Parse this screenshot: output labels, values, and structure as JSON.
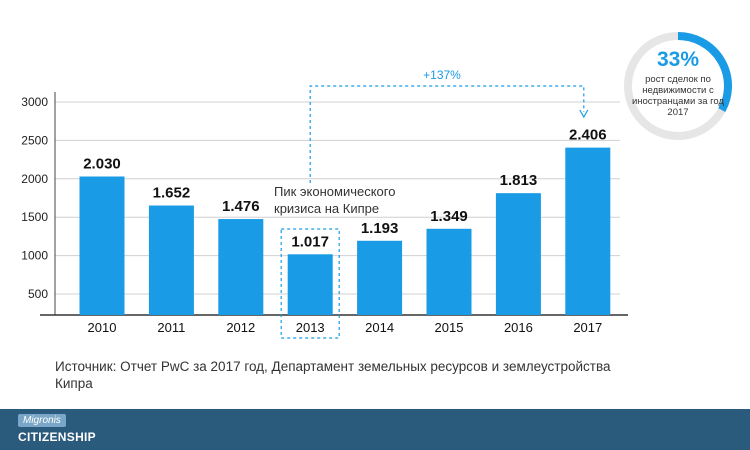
{
  "chart_data": {
    "type": "bar",
    "categories": [
      "2010",
      "2011",
      "2012",
      "2013",
      "2014",
      "2015",
      "2016",
      "2017"
    ],
    "values": [
      2030,
      1652,
      1476,
      1017,
      1193,
      1349,
      1813,
      2406
    ],
    "value_labels": [
      "2.030",
      "1.652",
      "1.476",
      "1.017",
      "1.193",
      "1.349",
      "1.813",
      "2.406"
    ],
    "yticks": [
      500,
      1000,
      1500,
      2000,
      2500,
      3000
    ],
    "ylim": [
      300,
      3000
    ],
    "bar_color": "#1a9be6",
    "highlight_category": "2013",
    "annotation": [
      "Пик экономического",
      "кризиса на Кипре"
    ],
    "growth": {
      "label": "+137%",
      "from": "2013",
      "to": "2017"
    }
  },
  "badge": {
    "percent": "33%",
    "text": "рост сделок по недвижимости с иностранцами за год 2017",
    "fill_fraction": 0.33,
    "accent_color": "#1a9be6"
  },
  "source": {
    "text": "Источник: Отчет PwC за 2017 год, Департамент земельных ресурсов и землеустройства Кипра"
  },
  "footer": {
    "brand_small": "Migronis",
    "brand_big": "CITIZENSHIP"
  }
}
